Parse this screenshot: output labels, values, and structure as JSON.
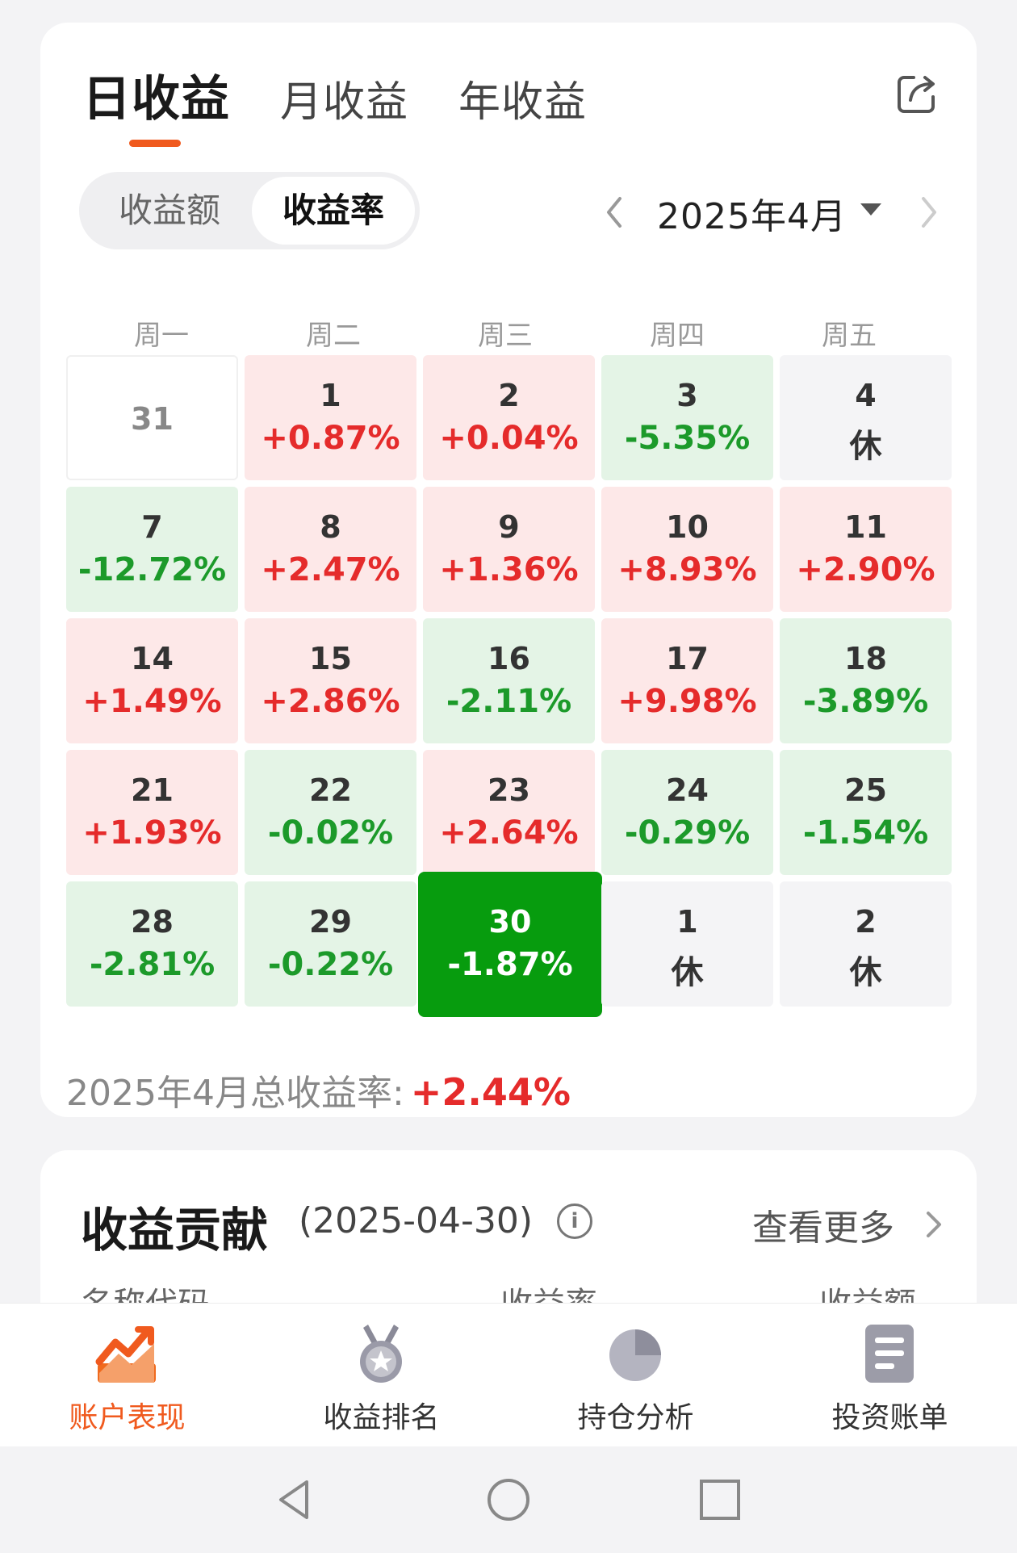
{
  "tabs": [
    {
      "label": "日收益",
      "active": true
    },
    {
      "label": "月收益",
      "active": false
    },
    {
      "label": "年收益",
      "active": false
    }
  ],
  "segment": {
    "options": [
      "收益额",
      "收益率"
    ],
    "selected": "收益率"
  },
  "month_picker": {
    "label": "2025年4月"
  },
  "weekdays": [
    "周一",
    "周二",
    "周三",
    "周四",
    "周五"
  ],
  "calendar": [
    [
      {
        "day": "31",
        "value": "",
        "kind": "blank"
      },
      {
        "day": "1",
        "value": "+0.87%",
        "kind": "up"
      },
      {
        "day": "2",
        "value": "+0.04%",
        "kind": "up"
      },
      {
        "day": "3",
        "value": "-5.35%",
        "kind": "dn"
      },
      {
        "day": "4",
        "value": "休",
        "kind": "rest"
      }
    ],
    [
      {
        "day": "7",
        "value": "-12.72%",
        "kind": "dn"
      },
      {
        "day": "8",
        "value": "+2.47%",
        "kind": "up"
      },
      {
        "day": "9",
        "value": "+1.36%",
        "kind": "up"
      },
      {
        "day": "10",
        "value": "+8.93%",
        "kind": "up"
      },
      {
        "day": "11",
        "value": "+2.90%",
        "kind": "up"
      }
    ],
    [
      {
        "day": "14",
        "value": "+1.49%",
        "kind": "up"
      },
      {
        "day": "15",
        "value": "+2.86%",
        "kind": "up"
      },
      {
        "day": "16",
        "value": "-2.11%",
        "kind": "dn"
      },
      {
        "day": "17",
        "value": "+9.98%",
        "kind": "up"
      },
      {
        "day": "18",
        "value": "-3.89%",
        "kind": "dn"
      }
    ],
    [
      {
        "day": "21",
        "value": "+1.93%",
        "kind": "up"
      },
      {
        "day": "22",
        "value": "-0.02%",
        "kind": "dn"
      },
      {
        "day": "23",
        "value": "+2.64%",
        "kind": "up"
      },
      {
        "day": "24",
        "value": "-0.29%",
        "kind": "dn"
      },
      {
        "day": "25",
        "value": "-1.54%",
        "kind": "dn"
      }
    ],
    [
      {
        "day": "28",
        "value": "-2.81%",
        "kind": "dn"
      },
      {
        "day": "29",
        "value": "-0.22%",
        "kind": "dn"
      },
      {
        "day": "30",
        "value": "-1.87%",
        "kind": "sel"
      },
      {
        "day": "1",
        "value": "休",
        "kind": "rest"
      },
      {
        "day": "2",
        "value": "休",
        "kind": "rest"
      }
    ]
  ],
  "summary": {
    "label": "2025年4月总收益率:",
    "value": "+2.44%"
  },
  "contribution": {
    "title": "收益贡献",
    "date": "(2025-04-30)",
    "info_icon": "i",
    "more_label": "查看更多",
    "columns": [
      "名称代码",
      "收益率",
      "收益额"
    ]
  },
  "bottom_nav": [
    {
      "label": "账户表现",
      "icon": "trend-chart-icon",
      "active": true
    },
    {
      "label": "收益排名",
      "icon": "medal-icon",
      "active": false
    },
    {
      "label": "持仓分析",
      "icon": "pie-chart-icon",
      "active": false
    },
    {
      "label": "投资账单",
      "icon": "document-icon",
      "active": false
    }
  ],
  "colors": {
    "accent": "#f05a1e",
    "up": "#e52b2b",
    "down": "#1c9a2a",
    "selected": "#079c0e"
  }
}
